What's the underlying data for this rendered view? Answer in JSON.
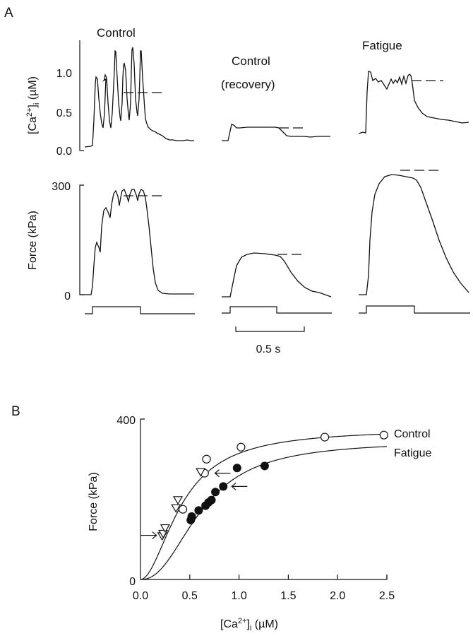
{
  "panel_labels": {
    "a": "A",
    "b": "B"
  },
  "chart_data": [
    {
      "type": "line",
      "title": "Panel A: [Ca2+]i and force traces during tetani",
      "conditions": [
        "Control",
        "Control (recovery)",
        "Fatigue"
      ],
      "condition_titles": {
        "control": "Control",
        "recovery_line1": "Control",
        "recovery_line2": "(recovery)",
        "fatigue": "Fatigue"
      },
      "ca_axis": {
        "label_main": "[Ca",
        "label_sup": "2+",
        "label_close": "]",
        "label_sub": "i",
        "label_unit": " (µM)",
        "ticks": [
          "0.0",
          "0.5",
          "1.0"
        ],
        "ylim": [
          0,
          1.3
        ]
      },
      "force_axis": {
        "label": "Force (kPa)",
        "ticks": [
          "0",
          "300"
        ],
        "ylim": [
          0,
          300
        ]
      },
      "scale_bar": {
        "label": "0.5 s",
        "seconds": 0.5
      },
      "mean_levels": {
        "ca_uM": {
          "control": 0.73,
          "recovery": 0.29,
          "fatigue": 0.9
        },
        "force_kPa": {
          "control": 265,
          "recovery": 105,
          "fatigue": 240
        }
      },
      "peak_values": {
        "ca_uM": {
          "control": [
            0.95,
            1.0,
            1.27,
            1.13,
            1.3,
            1.27
          ],
          "recovery_peak": 0.33,
          "fatigue_peak": 1.02
        },
        "force_kPa": {
          "control_peak": 285,
          "recovery_peak": 108,
          "fatigue_peak": 248
        }
      }
    },
    {
      "type": "scatter",
      "title": "Panel B: Force vs [Ca2+]i",
      "xlabel_main": "[Ca",
      "xlabel_sup": "2+",
      "xlabel_close": "]",
      "xlabel_sub": "i",
      "xlabel_unit": " (µM)",
      "ylabel": "Force (kPa)",
      "xlim": [
        0,
        2.5
      ],
      "ylim": [
        0,
        400
      ],
      "xticks": [
        "0.0",
        "0.5",
        "1.0",
        "1.5",
        "2.0",
        "2.5"
      ],
      "yticks": [
        "0",
        "400"
      ],
      "legend": [
        {
          "name": "Control",
          "position": "right of curve end"
        },
        {
          "name": "Fatigue",
          "position": "right of curve end"
        }
      ],
      "series": [
        {
          "name": "Control",
          "marker": "open-circle",
          "points": [
            [
              0.43,
              175
            ],
            [
              0.65,
              265
            ],
            [
              0.67,
              300
            ],
            [
              1.02,
              330
            ],
            [
              1.87,
              355
            ],
            [
              2.47,
              360
            ]
          ]
        },
        {
          "name": "Control (triangles)",
          "marker": "open-triangle-down",
          "points": [
            [
              0.22,
              108
            ],
            [
              0.23,
              114
            ],
            [
              0.25,
              128
            ],
            [
              0.36,
              178
            ],
            [
              0.38,
              198
            ],
            [
              0.61,
              268
            ]
          ]
        },
        {
          "name": "Fatigue",
          "marker": "filled-circle",
          "points": [
            [
              0.51,
              148
            ],
            [
              0.52,
              157
            ],
            [
              0.59,
              172
            ],
            [
              0.66,
              184
            ],
            [
              0.69,
              192
            ],
            [
              0.72,
              198
            ],
            [
              0.76,
              218
            ],
            [
              0.84,
              232
            ],
            [
              0.98,
              278
            ],
            [
              1.26,
              283
            ]
          ]
        }
      ],
      "fits": [
        {
          "name": "Control",
          "fmax": 375,
          "ca50": 0.42,
          "n": 1.9
        },
        {
          "name": "Fatigue",
          "fmax": 345,
          "ca50": 0.62,
          "n": 2.3
        }
      ],
      "arrows": [
        {
          "direction": "right",
          "at": [
            0.22,
            110
          ]
        },
        {
          "direction": "left",
          "at": [
            0.67,
            265
          ]
        },
        {
          "direction": "left",
          "at": [
            0.84,
            232
          ]
        }
      ]
    }
  ]
}
